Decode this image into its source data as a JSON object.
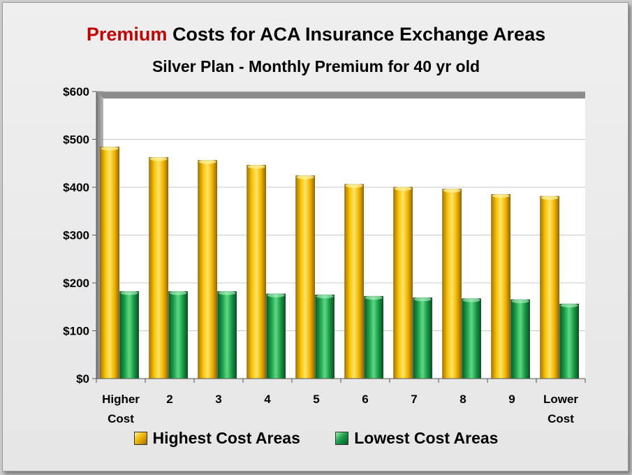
{
  "colors": {
    "accent": "#c00000",
    "gold": "#f2b800",
    "green": "#1aa24a"
  },
  "title": {
    "accent_word": "Premium",
    "rest": "Costs for ACA Insurance Exchange Areas"
  },
  "subtitle": "Silver Plan - Monthly Premium for 40 yr old",
  "legend": {
    "highest": "Highest Cost Areas",
    "lowest": "Lowest Cost Areas"
  },
  "chart_data": {
    "type": "bar",
    "title": "Premium Costs for ACA Insurance Exchange Areas",
    "subtitle": "Silver Plan - Monthly Premium for 40 yr old",
    "categories": [
      "Higher Cost",
      "2",
      "3",
      "4",
      "5",
      "6",
      "7",
      "8",
      "9",
      "Lower Cost"
    ],
    "series": [
      {
        "name": "Highest Cost Areas",
        "values": [
          484,
          462,
          456,
          446,
          424,
          406,
          400,
          396,
          385,
          381
        ]
      },
      {
        "name": "Lowest Cost Areas",
        "values": [
          182,
          182,
          182,
          177,
          175,
          172,
          169,
          167,
          165,
          156
        ]
      }
    ],
    "ylim": [
      0,
      600
    ],
    "yticks": [
      0,
      100,
      200,
      300,
      400,
      500,
      600
    ],
    "ytick_labels": [
      "$0",
      "$100",
      "$200",
      "$300",
      "$400",
      "$500",
      "$600"
    ],
    "xlabel": "",
    "ylabel": "",
    "grid": true,
    "legend_position": "bottom"
  }
}
